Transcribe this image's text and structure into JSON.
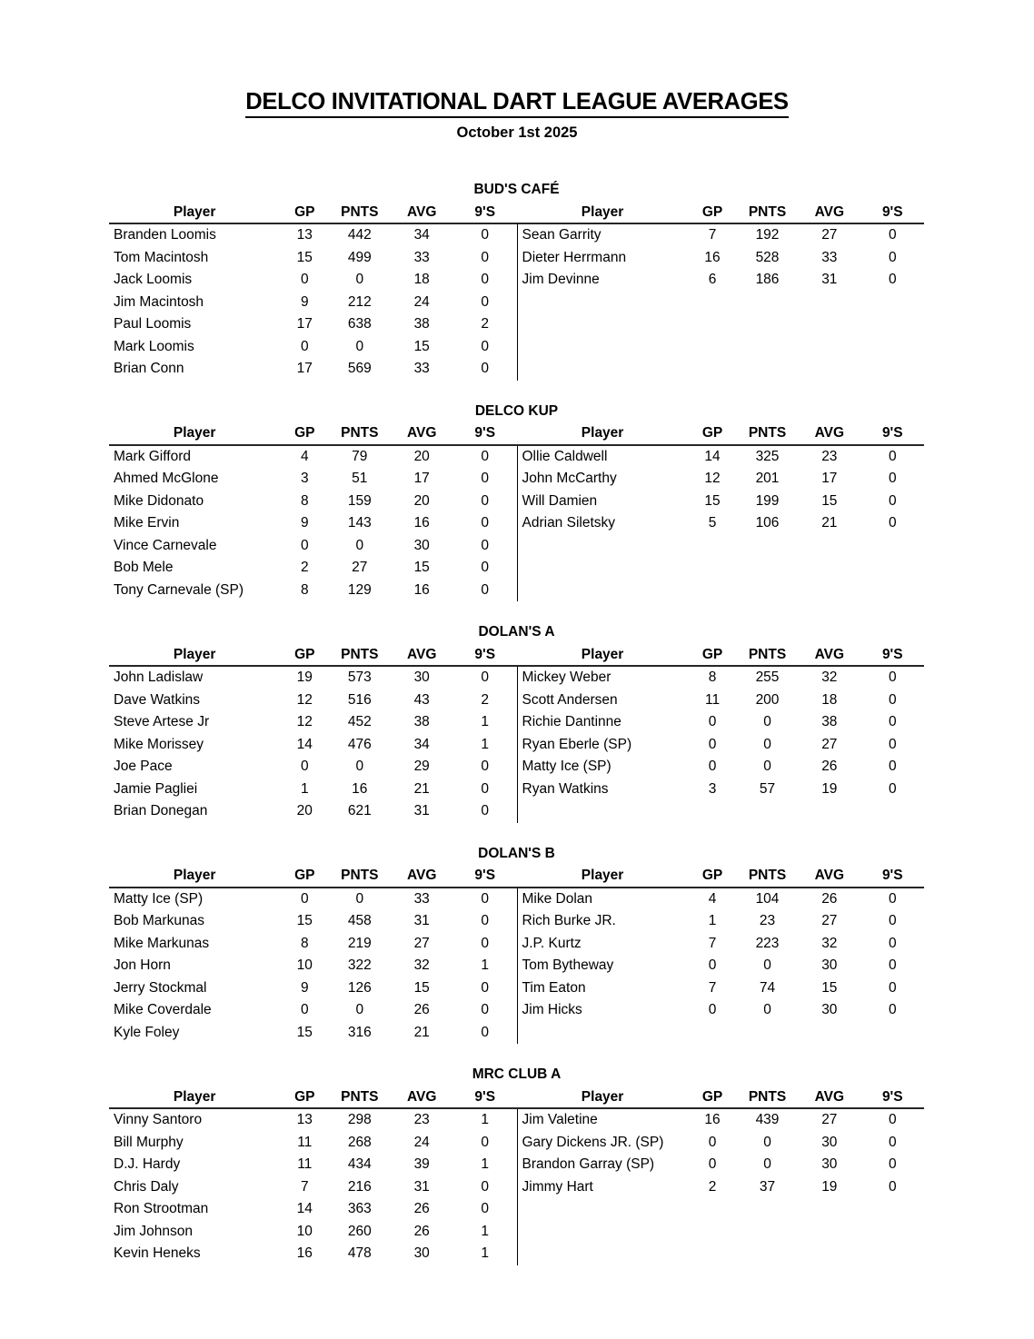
{
  "page": {
    "title": "DELCO INVITATIONAL DART LEAGUE AVERAGES",
    "subtitle": "October 1st 2025"
  },
  "table": {
    "columns": [
      "Player",
      "GP",
      "PNTS",
      "AVG",
      "9'S"
    ]
  },
  "sections": [
    {
      "name": "BUD'S CAFÉ",
      "left": [
        [
          "Branden Loomis",
          "13",
          "442",
          "34",
          "0"
        ],
        [
          "Tom Macintosh",
          "15",
          "499",
          "33",
          "0"
        ],
        [
          "Jack Loomis",
          "0",
          "0",
          "18",
          "0"
        ],
        [
          "Jim Macintosh",
          "9",
          "212",
          "24",
          "0"
        ],
        [
          "Paul Loomis",
          "17",
          "638",
          "38",
          "2"
        ],
        [
          "Mark Loomis",
          "0",
          "0",
          "15",
          "0"
        ],
        [
          "Brian Conn",
          "17",
          "569",
          "33",
          "0"
        ]
      ],
      "right": [
        [
          "Sean Garrity",
          "7",
          "192",
          "27",
          "0"
        ],
        [
          "Dieter Herrmann",
          "16",
          "528",
          "33",
          "0"
        ],
        [
          "Jim Devinne",
          "6",
          "186",
          "31",
          "0"
        ]
      ]
    },
    {
      "name": "DELCO KUP",
      "left": [
        [
          "Mark Gifford",
          "4",
          "79",
          "20",
          "0"
        ],
        [
          "Ahmed McGlone",
          "3",
          "51",
          "17",
          "0"
        ],
        [
          "Mike Didonato",
          "8",
          "159",
          "20",
          "0"
        ],
        [
          "Mike Ervin",
          "9",
          "143",
          "16",
          "0"
        ],
        [
          "Vince Carnevale",
          "0",
          "0",
          "30",
          "0"
        ],
        [
          "Bob Mele",
          "2",
          "27",
          "15",
          "0"
        ],
        [
          "Tony Carnevale (SP)",
          "8",
          "129",
          "16",
          "0"
        ]
      ],
      "right": [
        [
          "Ollie Caldwell",
          "14",
          "325",
          "23",
          "0"
        ],
        [
          "John McCarthy",
          "12",
          "201",
          "17",
          "0"
        ],
        [
          "Will Damien",
          "15",
          "199",
          "15",
          "0"
        ],
        [
          "Adrian Siletsky",
          "5",
          "106",
          "21",
          "0"
        ]
      ]
    },
    {
      "name": "DOLAN'S A",
      "left": [
        [
          "John Ladislaw",
          "19",
          "573",
          "30",
          "0"
        ],
        [
          "Dave Watkins",
          "12",
          "516",
          "43",
          "2"
        ],
        [
          "Steve Artese Jr",
          "12",
          "452",
          "38",
          "1"
        ],
        [
          "Mike Morissey",
          "14",
          "476",
          "34",
          "1"
        ],
        [
          "Joe Pace",
          "0",
          "0",
          "29",
          "0"
        ],
        [
          "Jamie Pagliei",
          "1",
          "16",
          "21",
          "0"
        ],
        [
          "Brian Donegan",
          "20",
          "621",
          "31",
          "0"
        ]
      ],
      "right": [
        [
          "Mickey Weber",
          "8",
          "255",
          "32",
          "0"
        ],
        [
          "Scott Andersen",
          "11",
          "200",
          "18",
          "0"
        ],
        [
          "Richie Dantinne",
          "0",
          "0",
          "38",
          "0"
        ],
        [
          "Ryan Eberle (SP)",
          "0",
          "0",
          "27",
          "0"
        ],
        [
          "Matty Ice (SP)",
          "0",
          "0",
          "26",
          "0"
        ],
        [
          "Ryan Watkins",
          "3",
          "57",
          "19",
          "0"
        ]
      ]
    },
    {
      "name": "DOLAN'S B",
      "left": [
        [
          "Matty Ice (SP)",
          "0",
          "0",
          "33",
          "0"
        ],
        [
          "Bob Markunas",
          "15",
          "458",
          "31",
          "0"
        ],
        [
          "Mike Markunas",
          "8",
          "219",
          "27",
          "0"
        ],
        [
          "Jon Horn",
          "10",
          "322",
          "32",
          "1"
        ],
        [
          "Jerry Stockmal",
          "9",
          "126",
          "15",
          "0"
        ],
        [
          "Mike Coverdale",
          "0",
          "0",
          "26",
          "0"
        ],
        [
          "Kyle Foley",
          "15",
          "316",
          "21",
          "0"
        ]
      ],
      "right": [
        [
          "Mike Dolan",
          "4",
          "104",
          "26",
          "0"
        ],
        [
          "Rich Burke JR.",
          "1",
          "23",
          "27",
          "0"
        ],
        [
          "J.P. Kurtz",
          "7",
          "223",
          "32",
          "0"
        ],
        [
          "Tom Bytheway",
          "0",
          "0",
          "30",
          "0"
        ],
        [
          "Tim Eaton",
          "7",
          "74",
          "15",
          "0"
        ],
        [
          "Jim Hicks",
          "0",
          "0",
          "30",
          "0"
        ]
      ]
    },
    {
      "name": "MRC CLUB A",
      "left": [
        [
          "Vinny Santoro",
          "13",
          "298",
          "23",
          "1"
        ],
        [
          "Bill Murphy",
          "11",
          "268",
          "24",
          "0"
        ],
        [
          "D.J. Hardy",
          "11",
          "434",
          "39",
          "1"
        ],
        [
          "Chris Daly",
          "7",
          "216",
          "31",
          "0"
        ],
        [
          "Ron Strootman",
          "14",
          "363",
          "26",
          "0"
        ],
        [
          "Jim Johnson",
          "10",
          "260",
          "26",
          "1"
        ],
        [
          "Kevin Heneks",
          "16",
          "478",
          "30",
          "1"
        ]
      ],
      "right": [
        [
          "Jim Valetine",
          "16",
          "439",
          "27",
          "0"
        ],
        [
          "Gary Dickens JR. (SP)",
          "0",
          "0",
          "30",
          "0"
        ],
        [
          "Brandon Garray (SP)",
          "0",
          "0",
          "30",
          "0"
        ],
        [
          "Jimmy Hart",
          "2",
          "37",
          "19",
          "0"
        ]
      ]
    }
  ]
}
